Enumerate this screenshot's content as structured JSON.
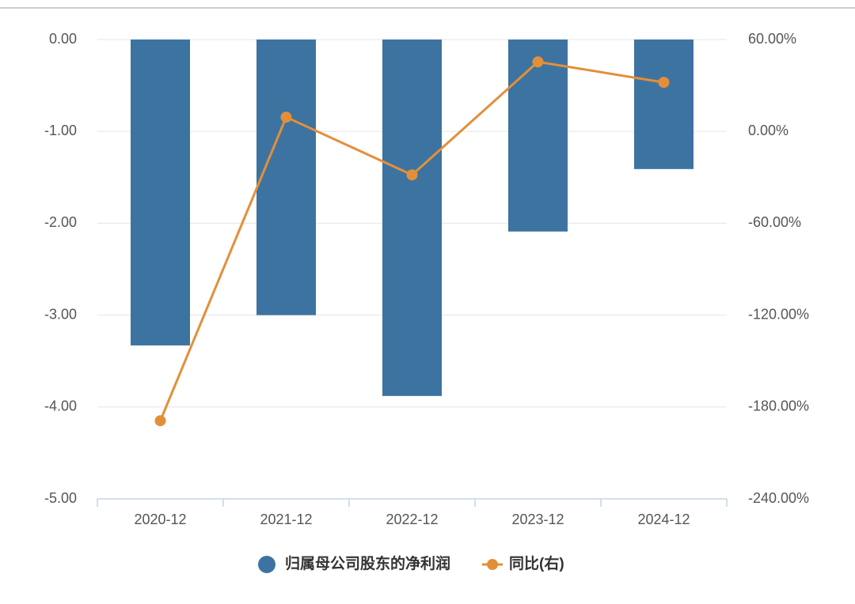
{
  "chart_data": {
    "type": "bar-line",
    "categories": [
      "2020-12",
      "2021-12",
      "2022-12",
      "2023-12",
      "2024-12"
    ],
    "series": [
      {
        "name": "归属母公司股东的净利润",
        "type": "bar",
        "color": "#3d73a0",
        "values": [
          -3.33,
          -3.0,
          -3.88,
          -2.09,
          -1.41
        ]
      },
      {
        "name": "同比(右)",
        "type": "line",
        "axis": "y2",
        "color": "#e38f3a",
        "values": [
          -189,
          9.3,
          -28.4,
          45.4,
          32
        ]
      }
    ],
    "ylim": [
      -5,
      0
    ],
    "yticks": [
      {
        "value": 0,
        "label": "0.00"
      },
      {
        "value": -1,
        "label": "-1.00"
      },
      {
        "value": -2,
        "label": "-2.00"
      },
      {
        "value": -3,
        "label": "-3.00"
      },
      {
        "value": -4,
        "label": "-4.00"
      },
      {
        "value": -5,
        "label": "-5.00"
      }
    ],
    "y2lim": [
      -240,
      60
    ],
    "y2ticks": [
      {
        "value": 60,
        "label": "60.00%"
      },
      {
        "value": 0,
        "label": "0.00%"
      },
      {
        "value": -60,
        "label": "-60.00%"
      },
      {
        "value": -120,
        "label": "-120.00%"
      },
      {
        "value": -180,
        "label": "-180.00%"
      },
      {
        "value": -240,
        "label": "-240.00%"
      }
    ],
    "grid": true
  }
}
